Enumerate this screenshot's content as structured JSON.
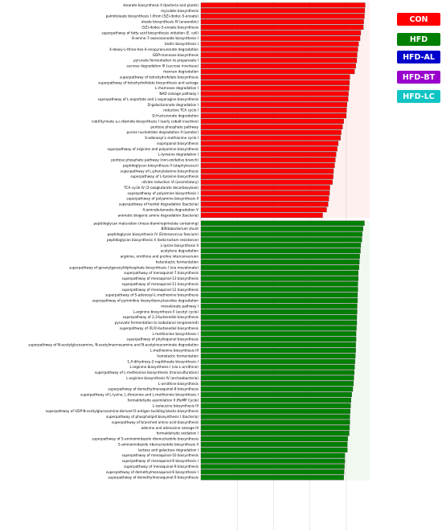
{
  "chart_data": {
    "type": "bar",
    "orientation": "horizontal",
    "title": "",
    "xlabel": "",
    "ylabel": "",
    "grid": "vertical dotted",
    "legend_position": "right",
    "legend": [
      {
        "label": "CON",
        "color": "#ff0000"
      },
      {
        "label": "HFD",
        "color": "#008000"
      },
      {
        "label": "HFD-AL",
        "color": "#0000cc"
      },
      {
        "label": "HFD-BT",
        "color": "#9900cc"
      },
      {
        "label": "HFD-LC",
        "color": "#11c4c4"
      }
    ],
    "series": [
      {
        "group": "CON",
        "color": "#ff0000",
        "categories": [
          "stearate biosynthesis II (bacteria and plants)",
          "mycolate biosynthesis",
          "palmitoleate biosynthesis I (from (5Z)-dodec-5-enoate)",
          "oleate biosynthesis IV (anaerobic)",
          "(5Z)-dodec-5-enoate biosynthesis",
          "superpathway of fatty acid biosynthesis initiation (E. coli)",
          "8-amino-7-oxononanoate biosynthesis I",
          "biotin biosynthesis I",
          "4-deoxy-L-threo-hex-4-enopyranuronate degradation",
          "GDP-mannose biosynthesis",
          "pyruvate fermentation to propanoate I",
          "sucrose degradation III (sucrose invertase)",
          "mannan degradation",
          "superpathway of tetrahydrofolate biosynthesis",
          "superpathway of tetrahydrofolate biosynthesis and salvage",
          "L-rhamnose degradation I",
          "NAD salvage pathway I",
          "superpathway of L-aspartate and L-asparagine biosynthesis",
          "D-galacturonate degradation I",
          "reductive TCA cycle I",
          "D-fructuronate degradation",
          "cob(II)yrinate a,c-diamide biosynthesis I (early cobalt insertion)",
          "pentose phosphate pathway",
          "purine nucleotides degradation II (aerobic)",
          "S-adenosyl-L-methionine cycle I",
          "isopropanol biosynthesis",
          "superpathway of arginine and polyamine biosynthesis",
          "L-tyrosine degradation I",
          "pentose phosphate pathway (non-oxidative branch)",
          "peptidoglycan biosynthesis II (staphylococci)",
          "superpathway of L-phenylalanine biosynthesis",
          "superpathway of L-tyrosine biosynthesis",
          "nitrate reduction VI (assimilatory)",
          "TCA cycle IV (2-oxoglutarate decarboxylase)",
          "superpathway of polyamine biosynthesis I",
          "superpathway of polyamine biosynthesis II",
          "superpathway of hexitol degradation (bacteria)",
          "4-aminobutanoate degradation V",
          "aromatic biogenic amine degradation (bacteria)"
        ],
        "values": [
          4.52,
          4.51,
          4.5,
          4.48,
          4.47,
          4.4,
          4.38,
          4.34,
          4.32,
          4.3,
          4.29,
          4.26,
          4.23,
          4.1,
          4.09,
          4.08,
          4.06,
          4.05,
          4.02,
          4.01,
          4.0,
          3.93,
          3.9,
          3.86,
          3.84,
          3.78,
          3.75,
          3.72,
          3.7,
          3.68,
          3.65,
          3.64,
          3.62,
          3.55,
          3.54,
          3.52,
          3.5,
          3.46,
          3.35
        ]
      },
      {
        "group": "HFD",
        "color": "#008000",
        "categories": [
          "peptidoglycan maturation (meso-diaminopimelate containing)",
          "Bifidobacterium shunt",
          "peptidoglycan biosynthesis IV (Enterococcus faecium)",
          "peptidoglycan biosynthesis V (beta-lactam resistance)",
          "L-lysine biosynthesis II",
          "acetylene degradation",
          "arginine, ornithine and proline interconversion",
          "heterolactic fermentation",
          "superpathway of geranylgeranyldiphosphate biosynthesis I (via mevalonate)",
          "superpathway of menaquinol-7 biosynthesis",
          "superpathway of menaquinol-13 biosynthesis",
          "superpathway of menaquinol-11 biosynthesis",
          "superpathway of menaquinol-12 biosynthesis",
          "superpathway of S-adenosyl-L-methionine biosynthesis",
          "superpathway of pyrimidine deoxyribonucleosides degradation",
          "mevalonate pathway I",
          "L-arginine biosynthesis II (acetyl cycle)",
          "superpathway of 2,3-butanediol biosynthesis",
          "pyruvate fermentation to isobutanol (engineered)",
          "superpathway of (R,R)-butanediol biosynthesis",
          "L-methionine biosynthesis I",
          "superpathway of phylloquinol biosynthesis",
          "superpathway of N-acetylglucosamine, N-acetylmannosamine and N-acetylneuraminate degradation",
          "L-methionine biosynthesis III",
          "homolactic fermentation",
          "1,4-dihydroxy-2-naphthoate biosynthesis I",
          "L-arginine biosynthesis I (via L-ornithine)",
          "superpathway of L-methionine biosynthesis (transsulfuration)",
          "L-arginine biosynthesis IV (archaebacteria)",
          "L-ornithine biosynthesis",
          "superpathway of demethylmenaquinol-8 biosynthesis",
          "superpathway of L-lysine, L-threonine and L-methionine biosynthesis I",
          "formaldehyde assimilation II (RuMP Cycle)",
          "L-isoleucine biosynthesis III",
          "superpathway of UDP-N-acetylglucosamine-derived O-antigen building blocks biosynthesis",
          "superpathway of phospholipid biosynthesis I (bacteria)",
          "superpathway of branched amino acid biosynthesis",
          "adenine and adenosine salvage III",
          "formaldehyde oxidation I",
          "superpathway of 5-aminoimidazole ribonucleotide biosynthesis",
          "5-aminoimidazole ribonucleotide biosynthesis II",
          "lactose and galactose degradation I",
          "superpathway of menaquinol-10 biosynthesis",
          "superpathway of menaquinol-6 biosynthesis I",
          "superpathway of menaquinol-9 biosynthesis",
          "superpathway of demethylmenaquinol-6 biosynthesis I",
          "superpathway of demethylmenaquinol-9 biosynthesis"
        ],
        "values": [
          4.5,
          4.46,
          4.44,
          4.43,
          4.4,
          4.39,
          4.37,
          4.36,
          4.35,
          4.33,
          4.33,
          4.32,
          4.32,
          4.31,
          4.31,
          4.3,
          4.3,
          4.29,
          4.29,
          4.28,
          4.27,
          4.27,
          4.26,
          4.26,
          4.25,
          4.24,
          4.23,
          4.22,
          4.21,
          4.2,
          4.18,
          4.15,
          4.13,
          4.12,
          4.11,
          4.1,
          4.1,
          4.09,
          4.08,
          4.04,
          4.03,
          4.03,
          3.96,
          3.96,
          3.95,
          3.94,
          3.93
        ]
      }
    ],
    "xlim": [
      0,
      4.6
    ]
  }
}
